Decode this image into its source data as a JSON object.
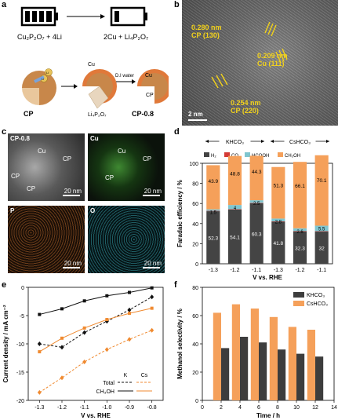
{
  "panel_labels": {
    "a": "a",
    "b": "b",
    "c": "c",
    "d": "d",
    "e": "e",
    "f": "f"
  },
  "panel_a": {
    "eq_left": "Cu₂P₂O₇ + 4Li",
    "eq_right": "2Cu + Li₄P₂O₇",
    "li": "Li",
    "cu": "Cu",
    "li4p2o7": "Li₄P₂O₇",
    "water": "D.I water",
    "cp": "CP",
    "cp08": "CP-0.8"
  },
  "panel_b": {
    "labels": [
      "0.280 nm\nCP (130)",
      "0.209 nm\nCu (111)",
      "0.254 nm\nCP (220)"
    ],
    "scale": "2 nm"
  },
  "panel_c": {
    "tiles": [
      {
        "title": "CP-0.8",
        "color": "#6a6a6a",
        "scale": "20 nm",
        "marks": [
          "Cu",
          "CP",
          "CP",
          "CP"
        ]
      },
      {
        "title": "Cu",
        "color": "#2f7a22",
        "scale": "20 nm",
        "marks": [
          "Cu",
          "CP",
          "CP"
        ]
      },
      {
        "title": "P",
        "color": "#7a4a22",
        "scale": "20 nm",
        "marks": []
      },
      {
        "title": "O",
        "color": "#1e6a72",
        "scale": "20 nm",
        "marks": []
      }
    ]
  },
  "chart_data": [
    {
      "id": "d",
      "type": "bar",
      "stacked": true,
      "title": "",
      "groups": [
        "KHCO₃",
        "CsHCO₃"
      ],
      "categories": [
        "-1.3",
        "-1.2",
        "-1.1",
        "-1.3",
        "-1.2",
        "-1.1"
      ],
      "xlabel": "V vs. RHE",
      "ylabel": "Faradaic efficiency / %",
      "ylim": [
        0,
        100
      ],
      "yticks": [
        0,
        20,
        40,
        60,
        80,
        100
      ],
      "series": [
        {
          "name": "H₂",
          "color": "#444444",
          "values": [
            52.3,
            54.1,
            60.3,
            41.8,
            32.3,
            32.0
          ]
        },
        {
          "name": "CO",
          "color": "#d43a35",
          "values": [
            0.4,
            0.4,
            0.4,
            0.4,
            0.4,
            0.4
          ]
        },
        {
          "name": "HCOOH",
          "color": "#7fc5cf",
          "values": [
            1.5,
            4.0,
            2.5,
            2.8,
            2.6,
            5.5
          ]
        },
        {
          "name": "CH₃OH",
          "color": "#f5a05a",
          "values": [
            43.9,
            48.8,
            44.3,
            51.3,
            66.1,
            70.1
          ]
        }
      ],
      "legend": "top"
    },
    {
      "id": "e",
      "type": "line",
      "xlabel": "V vs. RHE",
      "ylabel": "Current density / mA cm⁻²",
      "x": [
        -1.3,
        -1.2,
        -1.1,
        -1.0,
        -0.9,
        -0.8
      ],
      "xticks": [
        "-1.3",
        "-1.2",
        "-1.1",
        "-1.0",
        "-0.9",
        "-0.8"
      ],
      "ylim": [
        -20,
        0
      ],
      "yticks": [
        0,
        -5,
        -10,
        -15,
        -20
      ],
      "legend_cols": [
        "K",
        "Cs"
      ],
      "legend_rows": [
        "Total",
        "CH₃OH"
      ],
      "series": [
        {
          "name": "Total K",
          "color": "#111111",
          "dash": true,
          "marker": "diamond",
          "values": [
            -10.0,
            -10.6,
            -8.0,
            -6.0,
            -4.0,
            -1.7
          ]
        },
        {
          "name": "CH₃OH K",
          "color": "#111111",
          "dash": false,
          "marker": "square",
          "values": [
            -4.8,
            -3.8,
            -2.4,
            -1.5,
            -0.9,
            -0.1
          ]
        },
        {
          "name": "Total Cs",
          "color": "#f08a30",
          "dash": true,
          "marker": "diamond",
          "values": [
            -18.6,
            -16.0,
            -13.2,
            -11.0,
            -9.2,
            -7.6
          ]
        },
        {
          "name": "CH₃OH Cs",
          "color": "#f08a30",
          "dash": false,
          "marker": "square",
          "values": [
            -11.4,
            -9.0,
            -7.2,
            -5.7,
            -4.6,
            -3.7
          ]
        }
      ]
    },
    {
      "id": "f",
      "type": "bar",
      "xlabel": "Time / h",
      "ylabel": "Methanol selectivity / %",
      "x": [
        2,
        4,
        6,
        8,
        10,
        12
      ],
      "xlim": [
        0,
        14
      ],
      "xticks": [
        0,
        2,
        4,
        6,
        8,
        10,
        12,
        14
      ],
      "ylim": [
        0,
        80
      ],
      "yticks": [
        0,
        20,
        40,
        60,
        80
      ],
      "series": [
        {
          "name": "KHCO₃",
          "color": "#3d3d3d",
          "values": [
            37,
            45,
            41,
            36,
            33,
            31
          ]
        },
        {
          "name": "CsHCO₃",
          "color": "#f5a05a",
          "values": [
            62,
            68,
            65,
            59,
            52,
            50
          ]
        }
      ],
      "legend": "top-right"
    }
  ]
}
